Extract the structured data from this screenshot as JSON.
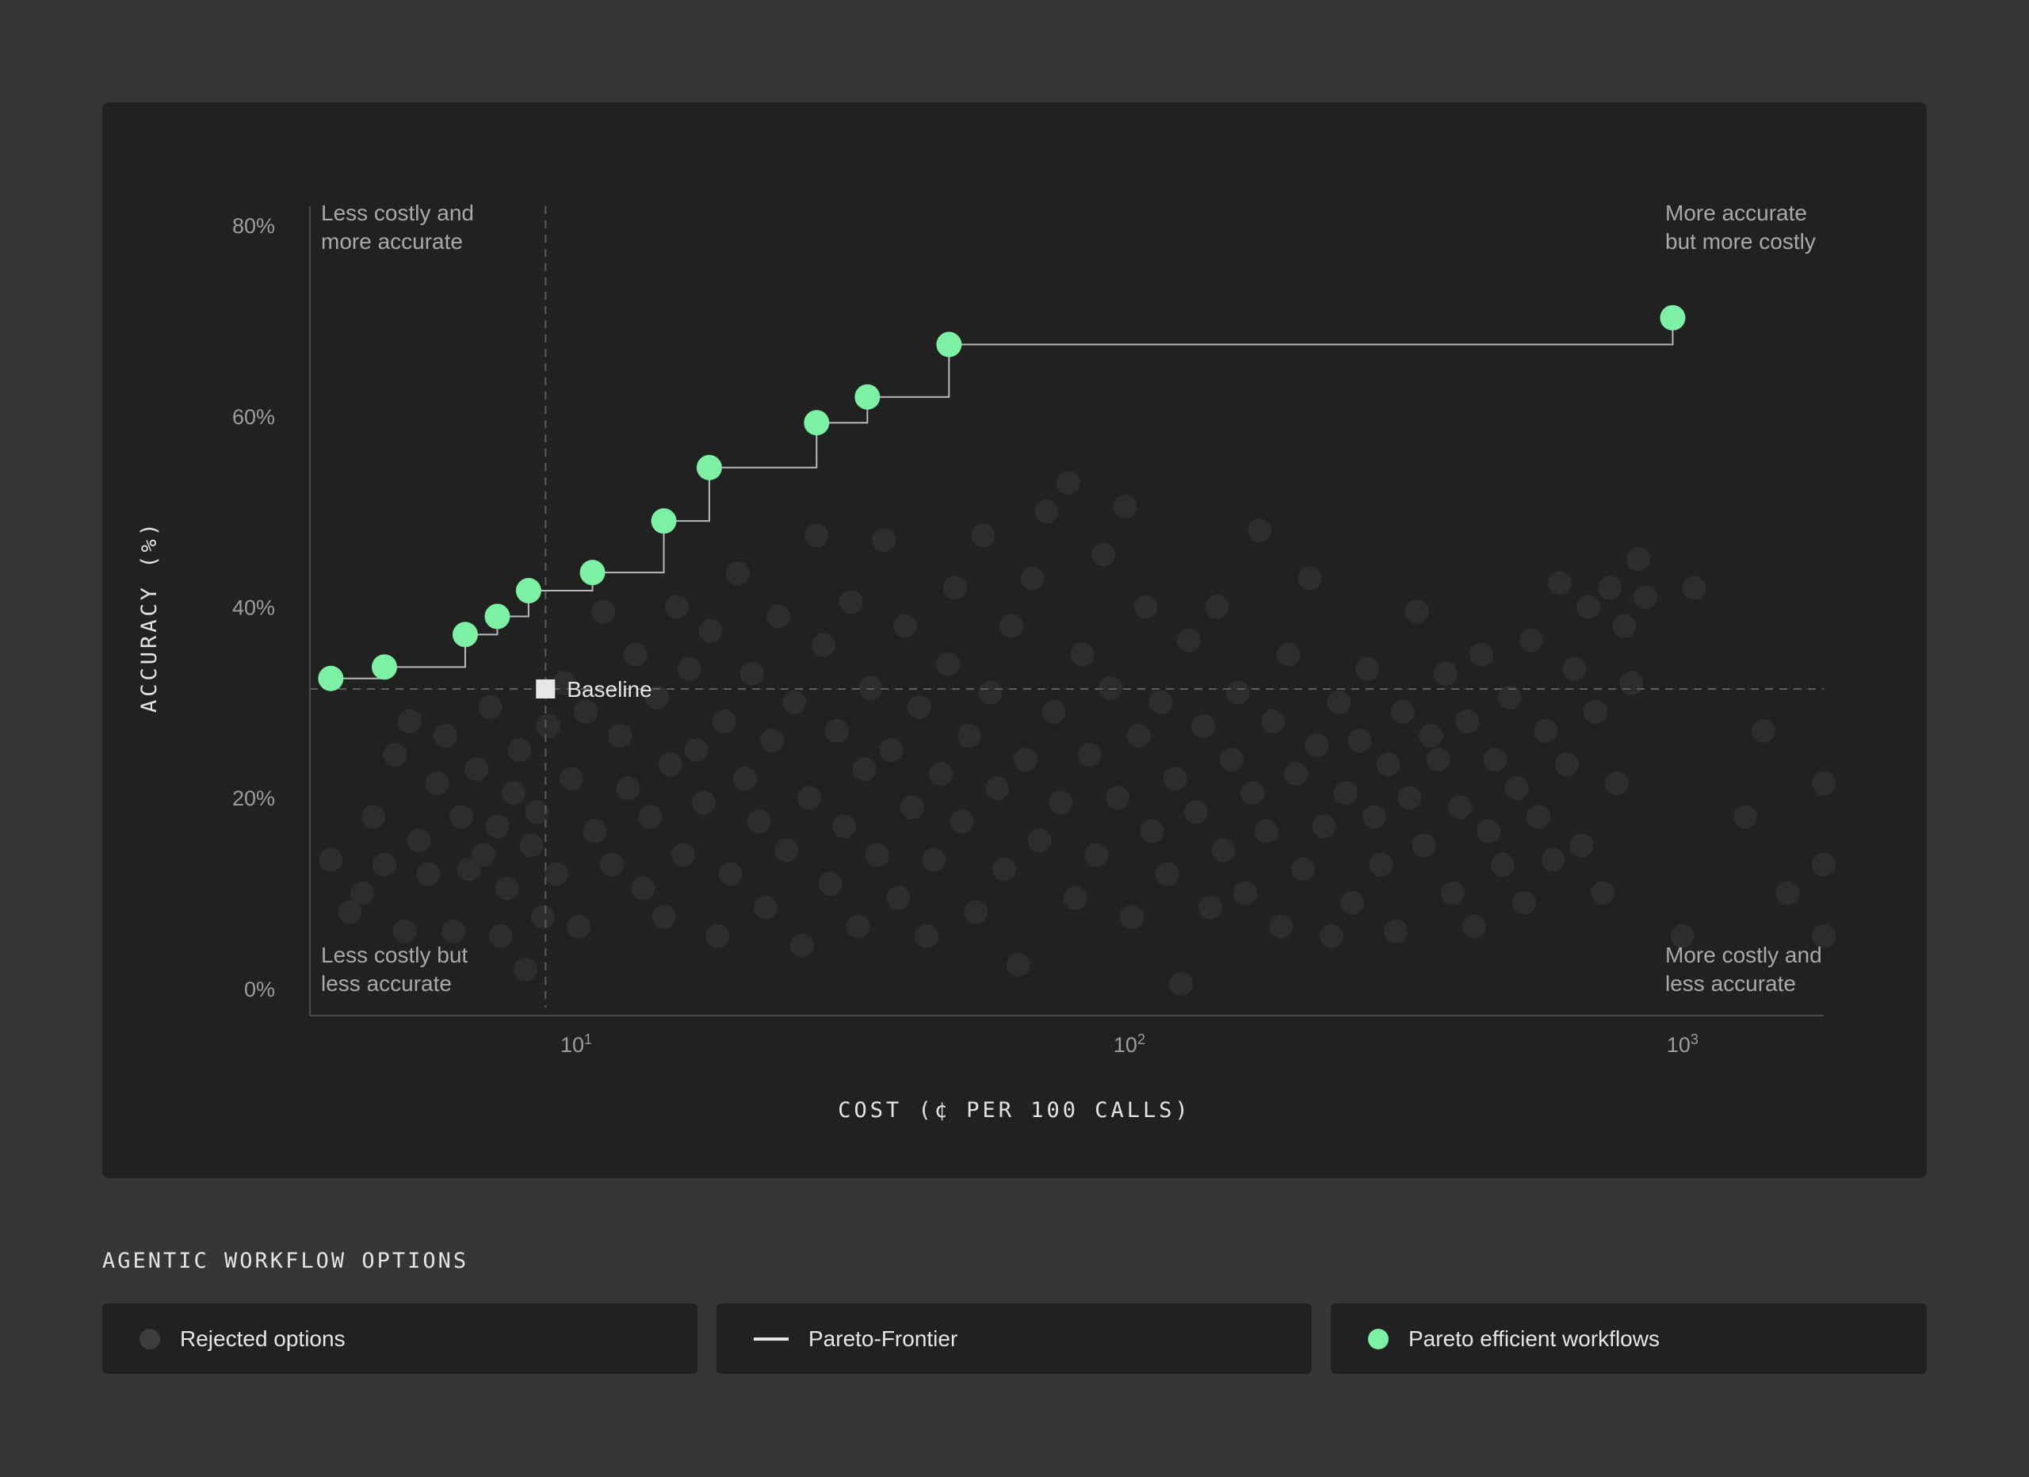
{
  "colors": {
    "background": "#353638",
    "panel": "#212121",
    "rejected": "#2d2d2e",
    "frontier_line": "#b9babc",
    "pareto": "#7cf0a3",
    "baseline": "#e6e6e8"
  },
  "legend": {
    "title": "AGENTIC WORKFLOW OPTIONS",
    "items": [
      {
        "label": "Rejected options",
        "swatch": "dot",
        "color": "#3d3d3f"
      },
      {
        "label": "Pareto-Frontier",
        "swatch": "line",
        "color": "#e6e6e8"
      },
      {
        "label": "Pareto efficient workflows",
        "swatch": "dot",
        "color": "#7cf0a3"
      }
    ]
  },
  "chart_data": {
    "type": "scatter",
    "xlabel": "COST (¢ PER 100 CALLS)",
    "ylabel": "ACCURACY (%)",
    "xscale": "log",
    "xlim": [
      3.3,
      1800
    ],
    "ylim": [
      -2,
      82
    ],
    "x_ticks": [
      {
        "value": 10,
        "base": "10",
        "exp": "1"
      },
      {
        "value": 100,
        "base": "10",
        "exp": "2"
      },
      {
        "value": 1000,
        "base": "10",
        "exp": "3"
      }
    ],
    "y_ticks": [
      {
        "value": 0,
        "label": "0%"
      },
      {
        "value": 20,
        "label": "20%"
      },
      {
        "value": 40,
        "label": "40%"
      },
      {
        "value": 60,
        "label": "60%"
      },
      {
        "value": 80,
        "label": "80%"
      }
    ],
    "quadrant_labels": {
      "top_left": [
        "Less costly and",
        "more accurate"
      ],
      "top_right": [
        "More accurate",
        "but more costly"
      ],
      "bottom_left": [
        "Less costly but",
        "less accurate"
      ],
      "bottom_right": [
        "More costly and",
        "less accurate"
      ]
    },
    "baseline": {
      "label": "Baseline",
      "x": 8.8,
      "y": 31.4
    },
    "series": [
      {
        "name": "Pareto efficient workflows",
        "points": [
          [
            3.6,
            32.5
          ],
          [
            4.5,
            33.7
          ],
          [
            6.3,
            37.1
          ],
          [
            7.2,
            39.0
          ],
          [
            8.2,
            41.7
          ],
          [
            10.7,
            43.6
          ],
          [
            14.4,
            49.0
          ],
          [
            17.4,
            54.6
          ],
          [
            27.2,
            59.3
          ],
          [
            33.6,
            62.0
          ],
          [
            47.2,
            67.5
          ],
          [
            960,
            70.3
          ]
        ]
      },
      {
        "name": "Rejected options",
        "points": [
          [
            3.6,
            13.5
          ],
          [
            3.9,
            8.0
          ],
          [
            4.1,
            10.0
          ],
          [
            4.3,
            18.0
          ],
          [
            4.5,
            13.0
          ],
          [
            4.7,
            24.5
          ],
          [
            4.9,
            6.0
          ],
          [
            5.0,
            28.0
          ],
          [
            5.2,
            15.5
          ],
          [
            5.4,
            12.0
          ],
          [
            5.6,
            21.5
          ],
          [
            5.8,
            26.5
          ],
          [
            6.0,
            6.0
          ],
          [
            6.2,
            18.0
          ],
          [
            6.4,
            12.5
          ],
          [
            6.6,
            23.0
          ],
          [
            6.8,
            14.0
          ],
          [
            7.0,
            29.5
          ],
          [
            7.2,
            17.0
          ],
          [
            7.3,
            5.5
          ],
          [
            7.5,
            10.5
          ],
          [
            7.7,
            20.5
          ],
          [
            7.9,
            25.0
          ],
          [
            8.1,
            2.0
          ],
          [
            8.3,
            15.0
          ],
          [
            8.5,
            18.5
          ],
          [
            8.7,
            7.5
          ],
          [
            8.9,
            27.5
          ],
          [
            9.2,
            12.0
          ],
          [
            9.5,
            32.0
          ],
          [
            9.8,
            22.0
          ],
          [
            10.1,
            6.5
          ],
          [
            10.4,
            29.0
          ],
          [
            10.8,
            16.5
          ],
          [
            11.2,
            39.5
          ],
          [
            11.6,
            13.0
          ],
          [
            12.0,
            26.5
          ],
          [
            12.4,
            21.0
          ],
          [
            12.8,
            35.0
          ],
          [
            13.2,
            10.5
          ],
          [
            13.6,
            18.0
          ],
          [
            14.0,
            30.5
          ],
          [
            14.4,
            7.5
          ],
          [
            14.8,
            23.5
          ],
          [
            15.2,
            40.0
          ],
          [
            15.6,
            14.0
          ],
          [
            16.0,
            33.5
          ],
          [
            16.5,
            25.0
          ],
          [
            17.0,
            19.5
          ],
          [
            17.5,
            37.5
          ],
          [
            18.0,
            5.5
          ],
          [
            18.5,
            28.0
          ],
          [
            19.0,
            12.0
          ],
          [
            19.6,
            43.5
          ],
          [
            20.2,
            22.0
          ],
          [
            20.8,
            33.0
          ],
          [
            21.4,
            17.5
          ],
          [
            22.0,
            8.5
          ],
          [
            22.6,
            26.0
          ],
          [
            23.2,
            39.0
          ],
          [
            24.0,
            14.5
          ],
          [
            24.8,
            30.0
          ],
          [
            25.6,
            4.5
          ],
          [
            26.4,
            20.0
          ],
          [
            27.2,
            47.5
          ],
          [
            28.0,
            36.0
          ],
          [
            28.8,
            11.0
          ],
          [
            29.6,
            27.0
          ],
          [
            30.5,
            17.0
          ],
          [
            31.4,
            40.5
          ],
          [
            32.3,
            6.5
          ],
          [
            33.2,
            23.0
          ],
          [
            34.1,
            31.5
          ],
          [
            35.0,
            14.0
          ],
          [
            36.0,
            47.0
          ],
          [
            37.1,
            25.0
          ],
          [
            38.2,
            9.5
          ],
          [
            39.3,
            38.0
          ],
          [
            40.5,
            19.0
          ],
          [
            41.7,
            29.5
          ],
          [
            43.0,
            5.5
          ],
          [
            44.3,
            13.5
          ],
          [
            45.6,
            22.5
          ],
          [
            47.0,
            34.0
          ],
          [
            48.4,
            42.0
          ],
          [
            49.8,
            17.5
          ],
          [
            51.3,
            26.5
          ],
          [
            52.8,
            8.0
          ],
          [
            54.4,
            47.5
          ],
          [
            56.0,
            31.0
          ],
          [
            57.7,
            21.0
          ],
          [
            59.4,
            12.5
          ],
          [
            61.2,
            38.0
          ],
          [
            63.0,
            2.5
          ],
          [
            64.9,
            24.0
          ],
          [
            66.8,
            43.0
          ],
          [
            68.8,
            15.5
          ],
          [
            70.9,
            50.0
          ],
          [
            73.0,
            29.0
          ],
          [
            75.2,
            19.5
          ],
          [
            77.5,
            53.0
          ],
          [
            79.8,
            9.5
          ],
          [
            82.2,
            35.0
          ],
          [
            84.7,
            24.5
          ],
          [
            87.2,
            14.0
          ],
          [
            89.8,
            45.5
          ],
          [
            92.5,
            31.5
          ],
          [
            95.3,
            20.0
          ],
          [
            98.2,
            50.5
          ],
          [
            101,
            7.5
          ],
          [
            104,
            26.5
          ],
          [
            107,
            40.0
          ],
          [
            110,
            16.5
          ],
          [
            114,
            30.0
          ],
          [
            117,
            12.0
          ],
          [
            121,
            22.0
          ],
          [
            124,
            0.5
          ],
          [
            128,
            36.5
          ],
          [
            132,
            18.5
          ],
          [
            136,
            27.5
          ],
          [
            140,
            8.5
          ],
          [
            144,
            40.0
          ],
          [
            148,
            14.5
          ],
          [
            153,
            24.0
          ],
          [
            157,
            31.0
          ],
          [
            162,
            10.0
          ],
          [
            167,
            20.5
          ],
          [
            172,
            48.0
          ],
          [
            177,
            16.5
          ],
          [
            182,
            28.0
          ],
          [
            188,
            6.5
          ],
          [
            194,
            35.0
          ],
          [
            200,
            22.5
          ],
          [
            206,
            12.5
          ],
          [
            212,
            43.0
          ],
          [
            218,
            25.5
          ],
          [
            225,
            17.0
          ],
          [
            232,
            5.5
          ],
          [
            239,
            30.0
          ],
          [
            246,
            20.5
          ],
          [
            253,
            9.0
          ],
          [
            261,
            26.0
          ],
          [
            269,
            33.5
          ],
          [
            277,
            18.0
          ],
          [
            285,
            13.0
          ],
          [
            294,
            23.5
          ],
          [
            303,
            6.0
          ],
          [
            312,
            29.0
          ],
          [
            321,
            20.0
          ],
          [
            331,
            39.5
          ],
          [
            341,
            15.0
          ],
          [
            351,
            26.5
          ],
          [
            362,
            24.0
          ],
          [
            373,
            33.0
          ],
          [
            384,
            10.0
          ],
          [
            396,
            19.0
          ],
          [
            408,
            28.0
          ],
          [
            420,
            6.5
          ],
          [
            433,
            35.0
          ],
          [
            446,
            16.5
          ],
          [
            459,
            24.0
          ],
          [
            473,
            13.0
          ],
          [
            487,
            30.5
          ],
          [
            502,
            21.0
          ],
          [
            517,
            9.0
          ],
          [
            533,
            36.5
          ],
          [
            549,
            18.0
          ],
          [
            566,
            27.0
          ],
          [
            583,
            13.5
          ],
          [
            600,
            42.5
          ],
          [
            618,
            23.5
          ],
          [
            637,
            33.5
          ],
          [
            656,
            15.0
          ],
          [
            676,
            40.0
          ],
          [
            696,
            29.0
          ],
          [
            717,
            10.0
          ],
          [
            739,
            42.0
          ],
          [
            761,
            21.5
          ],
          [
            784,
            38.0
          ],
          [
            808,
            32.0
          ],
          [
            832,
            45.0
          ],
          [
            857,
            41.0
          ],
          [
            1000,
            5.5
          ],
          [
            1050,
            42.0
          ],
          [
            1300,
            18.0
          ],
          [
            1400,
            27.0
          ],
          [
            1550,
            10.0
          ],
          [
            1800,
            21.5
          ],
          [
            1800,
            13.0
          ],
          [
            1800,
            5.5
          ]
        ]
      }
    ]
  }
}
